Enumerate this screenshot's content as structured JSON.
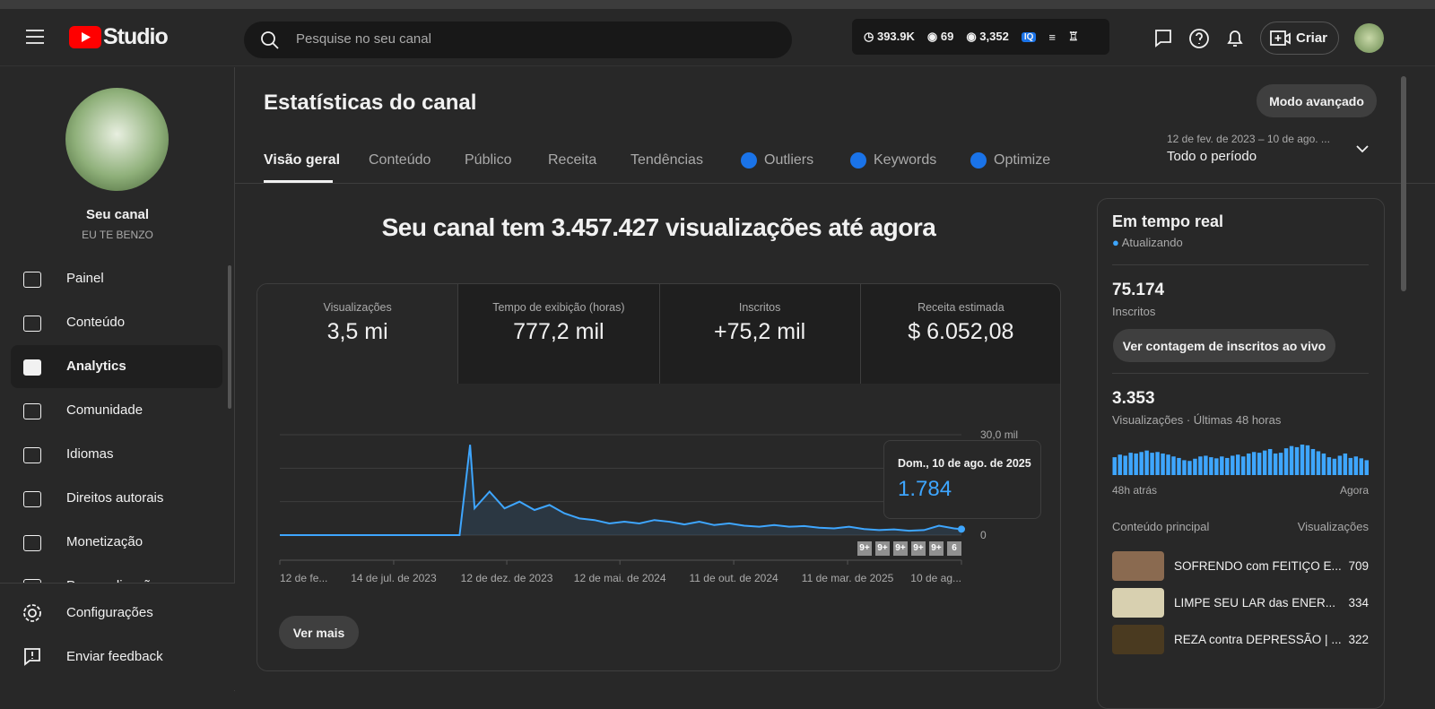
{
  "header": {
    "logo": "Studio",
    "search": "Pesquise no seu canal",
    "stats": [
      "393.9K",
      "69",
      "3,352"
    ],
    "create": "Criar"
  },
  "sidebar": {
    "channel_name": "Seu canal",
    "channel_handle": "EU TE BENZO",
    "nav": [
      "Painel",
      "Conteúdo",
      "Analytics",
      "Comunidade",
      "Idiomas",
      "Direitos autorais",
      "Monetização",
      "Personalização"
    ],
    "bottom": [
      "Configurações",
      "Enviar feedback"
    ]
  },
  "page": {
    "title": "Estatísticas do canal",
    "advanced": "Modo avançado",
    "tabs": [
      "Visão geral",
      "Conteúdo",
      "Público",
      "Receita",
      "Tendências",
      "Outliers",
      "Keywords",
      "Optimize"
    ],
    "date_range": "12 de fev. de 2023 – 10 de ago. ...",
    "period": "Todo o período",
    "headline": "Seu canal tem 3.457.427 visualizações até agora",
    "metrics": [
      {
        "label": "Visualizações",
        "value": "3,5 mi"
      },
      {
        "label": "Tempo de exibição (horas)",
        "value": "777,2 mil"
      },
      {
        "label": "Inscritos",
        "value": "+75,2 mil"
      },
      {
        "label": "Receita estimada",
        "value": "$ 6.052,08"
      }
    ],
    "tooltip_date": "Dom., 10 de ago. de 2025",
    "badges": [
      "9+",
      "9+",
      "9+",
      "9+",
      "9+",
      "6"
    ],
    "more": "Ver mais"
  },
  "realtime": {
    "title": "Em tempo real",
    "status": "Atualizando",
    "subs": "75.174",
    "subs_label": "Inscritos",
    "subs_button": "Ver contagem de inscritos ao vivo",
    "views": "3.353",
    "views_label": "Visualizações · Últimas 48 horas",
    "start_label": "48h atrás",
    "end_label": "Agora",
    "top_header": "Conteúdo principal",
    "top_views_header": "Visualizações",
    "rows": [
      {
        "title": "SOFRENDO com FEITIÇO E...",
        "views": 709
      },
      {
        "title": "LIMPE SEU LAR das ENER...",
        "views": 334
      },
      {
        "title": "REZA contra DEPRESSÃO | ...",
        "views": 322
      }
    ]
  },
  "chart_data": [
    {
      "type": "line",
      "color": "#3ea6ff",
      "x": [
        0,
        20,
        40,
        60,
        80,
        100,
        120,
        140,
        160,
        180,
        200,
        220,
        240,
        254,
        260,
        280,
        300,
        320,
        340,
        360,
        380,
        400,
        420,
        440,
        460,
        480,
        500,
        520,
        540,
        560,
        580,
        600,
        620,
        640,
        660,
        680,
        700,
        720,
        740,
        760,
        780,
        800,
        820,
        840,
        860,
        880,
        900,
        910
      ],
      "values": [
        0,
        0,
        0,
        0,
        0,
        0,
        0,
        0,
        0,
        0,
        0,
        0,
        0,
        27000,
        8000,
        13000,
        8000,
        10000,
        7500,
        9000,
        6500,
        5000,
        4500,
        3500,
        4000,
        3500,
        4500,
        4000,
        3200,
        4000,
        3000,
        3500,
        2800,
        2500,
        3000,
        2500,
        2700,
        2200,
        2000,
        2500,
        1800,
        1500,
        1700,
        1300,
        1500,
        2800,
        2000,
        1784
      ],
      "value_labels": {
        "47": "1.784"
      },
      "xlim": [
        0,
        910
      ],
      "xticks": [
        {
          "value": 0,
          "label": "12 de fe..."
        },
        {
          "value": 152,
          "label": "14 de jul. de 2023"
        },
        {
          "value": 303,
          "label": "12 de dez. de 2023"
        },
        {
          "value": 454,
          "label": "12 de mai. de 2024"
        },
        {
          "value": 606,
          "label": "11 de out. de 2024"
        },
        {
          "value": 758,
          "label": "11 de mar. de 2025"
        },
        {
          "value": 910,
          "label": "10 de ag..."
        }
      ],
      "ylim": [
        0,
        30000
      ],
      "yticks": [
        0,
        {
          "value": 30000,
          "label": "30,0 mil"
        }
      ],
      "grid_values": [
        10000,
        20000
      ]
    },
    {
      "type": "bar",
      "color": "#3ea6ff",
      "values": [
        48,
        55,
        52,
        60,
        58,
        62,
        66,
        60,
        62,
        58,
        55,
        50,
        46,
        40,
        38,
        44,
        50,
        52,
        48,
        45,
        50,
        46,
        52,
        55,
        50,
        58,
        62,
        60,
        66,
        70,
        58,
        60,
        72,
        78,
        75,
        82,
        80,
        70,
        64,
        58,
        48,
        44,
        52,
        58,
        46,
        50,
        45,
        40
      ]
    }
  ]
}
